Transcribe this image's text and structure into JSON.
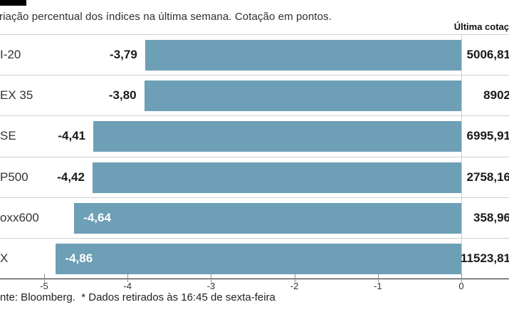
{
  "header": {
    "title": "riação percentual dos índices na última semana. Cotação em pontos.",
    "right_column_header": "Última cotaç"
  },
  "chart_data": {
    "type": "bar",
    "orientation": "horizontal",
    "title": "riação percentual dos índices na última semana. Cotação em pontos.",
    "categories": [
      "I-20",
      "EX 35",
      "SE",
      "P500",
      "oxx600",
      "X"
    ],
    "values": [
      -3.79,
      -3.8,
      -4.41,
      -4.42,
      -4.64,
      -4.86
    ],
    "value_labels": [
      "-3,79",
      "-3,80",
      "-4,41",
      "-4,42",
      "-4,64",
      "-4,86"
    ],
    "value_label_inside": [
      false,
      false,
      false,
      false,
      true,
      true
    ],
    "last_quote_column_header": "Última cotaç",
    "last_quotes": [
      "5006,81",
      "8902",
      "6995,91",
      "2758,16",
      "358,96",
      "11523,81"
    ],
    "x_tick_labels": [
      "-5",
      "-4",
      "-3",
      "-2",
      "-1",
      "0"
    ],
    "x_tick_values": [
      -5,
      -4,
      -3,
      -2,
      -1,
      0
    ],
    "xlim": [
      -5.53,
      0.57
    ],
    "grid": "zero-line-only",
    "legend": "none",
    "bar_color": "#6d9fb6"
  },
  "footer": {
    "source": "nte: Bloomberg.  * Dados retirados às 16:45 de sexta-feira"
  }
}
